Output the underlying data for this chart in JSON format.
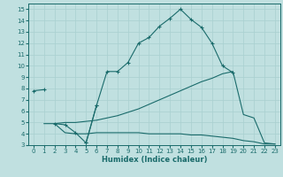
{
  "xlabel": "Humidex (Indice chaleur)",
  "bg_color": "#c0e0e0",
  "line_color": "#1a6b6b",
  "grid_color": "#a8d0d0",
  "xlim": [
    -0.5,
    23.5
  ],
  "ylim": [
    3,
    15.5
  ],
  "xticks": [
    0,
    1,
    2,
    3,
    4,
    5,
    6,
    7,
    8,
    9,
    10,
    11,
    12,
    13,
    14,
    15,
    16,
    17,
    18,
    19,
    20,
    21,
    22,
    23
  ],
  "yticks": [
    3,
    4,
    5,
    6,
    7,
    8,
    9,
    10,
    11,
    12,
    13,
    14,
    15
  ],
  "line1": {
    "x": [
      0,
      1
    ],
    "y": [
      7.8,
      7.9
    ],
    "marker": true
  },
  "line2": {
    "x": [
      2,
      3,
      4,
      5,
      6
    ],
    "y": [
      4.9,
      4.8,
      4.1,
      3.2,
      6.5
    ],
    "marker": true
  },
  "line3": {
    "x": [
      5,
      6,
      7,
      8,
      9,
      10,
      11,
      12,
      13,
      14,
      15,
      16,
      17,
      18,
      19
    ],
    "y": [
      3.2,
      6.5,
      9.5,
      9.5,
      10.3,
      12.0,
      12.5,
      13.5,
      14.2,
      15.0,
      14.1,
      13.4,
      12.0,
      10.0,
      9.4
    ],
    "marker": true
  },
  "line4": {
    "x": [
      1,
      2,
      3,
      4,
      5,
      6,
      7,
      8,
      9,
      10,
      11,
      12,
      13,
      14,
      15,
      16,
      17,
      18,
      19,
      20,
      21,
      22,
      23
    ],
    "y": [
      4.9,
      4.9,
      5.0,
      5.0,
      5.1,
      5.2,
      5.4,
      5.6,
      5.9,
      6.2,
      6.6,
      7.0,
      7.4,
      7.8,
      8.2,
      8.6,
      8.9,
      9.3,
      9.5,
      5.7,
      5.4,
      3.2,
      3.1
    ],
    "marker": false
  },
  "line5": {
    "x": [
      2,
      3,
      4,
      5,
      6,
      7,
      8,
      9,
      10,
      11,
      12,
      13,
      14,
      15,
      16,
      17,
      18,
      19,
      20,
      21,
      22,
      23
    ],
    "y": [
      4.9,
      4.1,
      4.0,
      4.0,
      4.1,
      4.1,
      4.1,
      4.1,
      4.1,
      4.0,
      4.0,
      4.0,
      4.0,
      3.9,
      3.9,
      3.8,
      3.7,
      3.6,
      3.4,
      3.3,
      3.1,
      3.1
    ],
    "marker": false
  }
}
